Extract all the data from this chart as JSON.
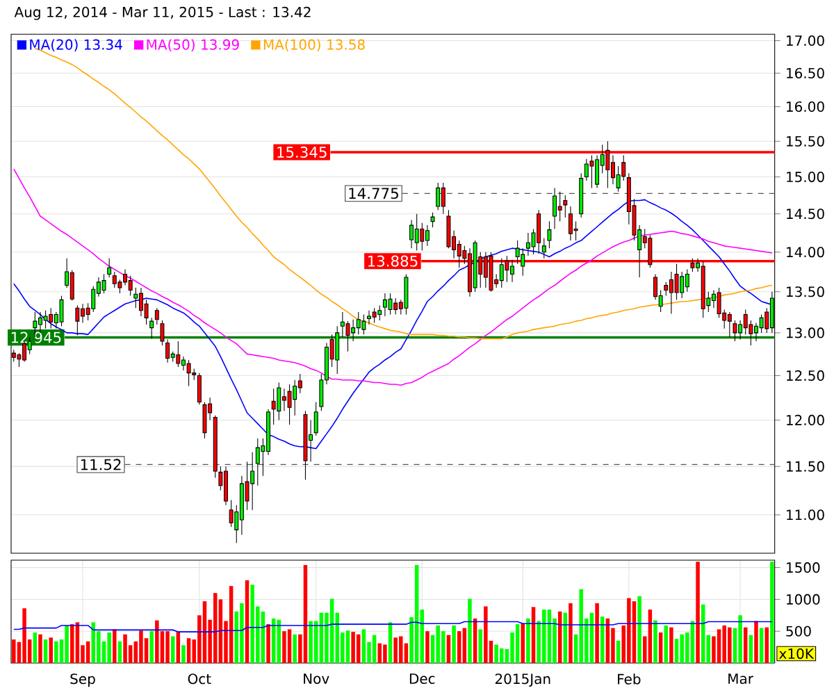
{
  "chart_data": [
    {
      "type": "candlestick",
      "title": "Aug 12, 2014 - Mar 11, 2015 - Last : 13.42",
      "categories": [
        null,
        null,
        null,
        null,
        null,
        null,
        null,
        null,
        null,
        null,
        null,
        null,
        null,
        null,
        null,
        null,
        null,
        null,
        null,
        null,
        null,
        null,
        null,
        null,
        null,
        null,
        null,
        null,
        null,
        null,
        null,
        null,
        null,
        null,
        null,
        null,
        null,
        null,
        null,
        null,
        null,
        null,
        null,
        null,
        null,
        null,
        null,
        null,
        null,
        null,
        null,
        null,
        null,
        null,
        null,
        null,
        null,
        null,
        null,
        null,
        null,
        null,
        null,
        null,
        null,
        null,
        null,
        null,
        null,
        null,
        null,
        null,
        null,
        null,
        null,
        null,
        null,
        null,
        null,
        null,
        null,
        null,
        null,
        null,
        null,
        null,
        null,
        null,
        null,
        null,
        null,
        null,
        null,
        null,
        null,
        null,
        null,
        null,
        null,
        null,
        null,
        null,
        null,
        null,
        null,
        null,
        null,
        null,
        null,
        null,
        null,
        null,
        null,
        null,
        null,
        null,
        null,
        null,
        null,
        null,
        null,
        null,
        null,
        null,
        null,
        null,
        null,
        null,
        null,
        null,
        null,
        null,
        null,
        null,
        null,
        null,
        null,
        null,
        null,
        null,
        null,
        null,
        null,
        null
      ],
      "ohlc": [
        [
          12.76,
          12.8,
          12.66,
          12.71
        ],
        [
          12.74,
          12.76,
          12.6,
          12.69
        ],
        [
          12.87,
          12.9,
          12.66,
          12.68
        ],
        [
          12.8,
          12.95,
          12.75,
          12.9
        ],
        [
          13.06,
          13.25,
          12.95,
          13.14
        ],
        [
          13.1,
          13.25,
          13.0,
          13.18
        ],
        [
          13.15,
          13.27,
          13.05,
          13.2
        ],
        [
          13.22,
          13.3,
          13.05,
          13.13
        ],
        [
          13.12,
          13.25,
          13.05,
          13.22
        ],
        [
          13.13,
          13.45,
          13.08,
          13.4
        ],
        [
          13.58,
          13.92,
          13.55,
          13.75
        ],
        [
          13.74,
          13.77,
          13.39,
          13.41
        ],
        [
          13.3,
          13.33,
          12.97,
          13.14
        ],
        [
          13.29,
          13.35,
          13.12,
          13.2
        ],
        [
          13.3,
          13.36,
          13.15,
          13.22
        ],
        [
          13.29,
          13.57,
          13.25,
          13.53
        ],
        [
          13.48,
          13.68,
          13.44,
          13.62
        ],
        [
          13.52,
          13.72,
          13.48,
          13.64
        ],
        [
          13.72,
          13.92,
          13.68,
          13.8
        ],
        [
          13.7,
          13.75,
          13.55,
          13.6
        ],
        [
          13.62,
          13.65,
          13.48,
          13.55
        ],
        [
          13.72,
          13.78,
          13.58,
          13.62
        ],
        [
          13.64,
          13.7,
          13.45,
          13.52
        ],
        [
          13.42,
          13.55,
          13.3,
          13.47
        ],
        [
          13.48,
          13.55,
          13.2,
          13.27
        ],
        [
          13.35,
          13.4,
          13.1,
          13.18
        ],
        [
          13.06,
          13.18,
          12.93,
          13.14
        ],
        [
          13.27,
          13.3,
          13.1,
          13.16
        ],
        [
          13.11,
          13.15,
          12.85,
          12.9
        ],
        [
          12.88,
          12.92,
          12.65,
          12.7
        ],
        [
          12.71,
          12.78,
          12.66,
          12.75
        ],
        [
          12.74,
          12.9,
          12.6,
          12.64
        ],
        [
          12.62,
          12.72,
          12.56,
          12.68
        ],
        [
          12.64,
          12.68,
          12.38,
          12.53
        ],
        [
          12.53,
          12.58,
          12.45,
          12.51
        ],
        [
          12.5,
          12.53,
          12.17,
          12.2
        ],
        [
          12.17,
          12.2,
          11.8,
          11.86
        ],
        [
          12.18,
          12.25,
          12.0,
          12.08
        ],
        [
          12.03,
          12.05,
          11.38,
          11.45
        ],
        [
          11.44,
          11.5,
          11.25,
          11.3
        ],
        [
          11.45,
          11.5,
          11.1,
          11.14
        ],
        [
          11.05,
          11.15,
          10.88,
          10.92
        ],
        [
          10.85,
          11.1,
          10.72,
          11.03
        ],
        [
          10.95,
          11.4,
          10.8,
          11.32
        ],
        [
          11.34,
          11.55,
          11.05,
          11.14
        ],
        [
          11.32,
          11.65,
          11.05,
          11.45
        ],
        [
          11.53,
          11.8,
          11.3,
          11.7
        ],
        [
          11.66,
          11.8,
          11.4,
          11.72
        ],
        [
          11.66,
          12.12,
          11.62,
          12.09
        ],
        [
          12.21,
          12.35,
          11.95,
          12.12
        ],
        [
          12.1,
          12.42,
          12.0,
          12.36
        ],
        [
          12.26,
          12.35,
          12.1,
          12.22
        ],
        [
          12.32,
          12.4,
          11.95,
          12.14
        ],
        [
          12.23,
          12.45,
          12.05,
          12.38
        ],
        [
          12.44,
          12.52,
          12.3,
          12.36
        ],
        [
          12.06,
          12.1,
          11.36,
          11.56
        ],
        [
          11.78,
          12.0,
          11.55,
          11.84
        ],
        [
          11.86,
          12.2,
          11.83,
          12.09
        ],
        [
          12.15,
          12.52,
          12.1,
          12.45
        ],
        [
          12.45,
          12.88,
          12.4,
          12.83
        ],
        [
          12.92,
          12.98,
          12.6,
          12.69
        ],
        [
          12.68,
          13.08,
          12.52,
          13.0
        ],
        [
          13.08,
          13.25,
          12.95,
          13.13
        ],
        [
          13.11,
          13.14,
          12.78,
          12.97
        ],
        [
          13.0,
          13.16,
          12.9,
          13.06
        ],
        [
          13.06,
          13.25,
          12.98,
          13.16
        ],
        [
          13.04,
          13.22,
          12.98,
          13.14
        ],
        [
          13.17,
          13.27,
          13.1,
          13.2
        ],
        [
          13.25,
          13.3,
          13.12,
          13.19
        ],
        [
          13.22,
          13.33,
          13.15,
          13.27
        ],
        [
          13.31,
          13.48,
          13.2,
          13.4
        ],
        [
          13.28,
          13.48,
          13.22,
          13.41
        ],
        [
          13.36,
          13.42,
          13.22,
          13.28
        ],
        [
          13.37,
          13.4,
          13.22,
          13.29
        ],
        [
          13.3,
          13.72,
          13.22,
          13.68
        ],
        [
          14.16,
          14.42,
          14.05,
          14.35
        ],
        [
          14.12,
          14.5,
          14.02,
          14.3
        ],
        [
          14.3,
          14.38,
          14.02,
          14.14
        ],
        [
          14.15,
          14.35,
          14.08,
          14.28
        ],
        [
          14.4,
          14.52,
          14.32,
          14.46
        ],
        [
          14.6,
          14.92,
          14.55,
          14.85
        ],
        [
          14.85,
          14.92,
          14.5,
          14.6
        ],
        [
          14.47,
          14.55,
          14.05,
          14.07
        ],
        [
          14.2,
          14.28,
          13.92,
          14.03
        ],
        [
          14.1,
          14.15,
          13.8,
          13.95
        ],
        [
          14.02,
          14.08,
          13.85,
          13.92
        ],
        [
          13.98,
          14.05,
          13.44,
          13.5
        ],
        [
          13.55,
          14.15,
          13.5,
          14.12
        ],
        [
          13.94,
          14.0,
          13.55,
          13.72
        ],
        [
          13.94,
          14.0,
          13.55,
          13.68
        ],
        [
          13.95,
          14.0,
          13.5,
          13.52
        ],
        [
          13.65,
          13.72,
          13.55,
          13.6
        ],
        [
          13.64,
          13.92,
          13.55,
          13.84
        ],
        [
          13.89,
          13.95,
          13.62,
          13.77
        ],
        [
          13.72,
          13.9,
          13.62,
          13.82
        ],
        [
          13.94,
          14.15,
          13.85,
          14.05
        ],
        [
          13.82,
          14.05,
          13.7,
          13.97
        ],
        [
          14.05,
          14.25,
          13.95,
          14.12
        ],
        [
          14.07,
          14.3,
          13.97,
          14.25
        ],
        [
          14.5,
          14.55,
          13.98,
          14.12
        ],
        [
          14.0,
          14.18,
          13.92,
          14.08
        ],
        [
          14.15,
          14.4,
          14.05,
          14.29
        ],
        [
          14.47,
          14.85,
          14.3,
          14.74
        ],
        [
          14.6,
          14.8,
          14.4,
          14.55
        ],
        [
          14.68,
          14.75,
          14.45,
          14.62
        ],
        [
          14.5,
          14.6,
          14.15,
          14.24
        ],
        [
          14.3,
          14.4,
          14.15,
          14.28
        ],
        [
          14.5,
          15.05,
          14.45,
          14.98
        ],
        [
          15.0,
          15.25,
          14.95,
          15.18
        ],
        [
          15.22,
          15.3,
          14.85,
          15.15
        ],
        [
          14.9,
          15.3,
          14.85,
          15.24
        ],
        [
          15.16,
          15.45,
          15.05,
          15.31
        ],
        [
          15.37,
          15.5,
          14.85,
          15.1
        ],
        [
          15.2,
          15.3,
          14.9,
          14.99
        ],
        [
          14.85,
          15.15,
          14.8,
          15.03
        ],
        [
          15.2,
          15.3,
          14.95,
          15.01
        ],
        [
          14.99,
          15.05,
          14.36,
          14.53
        ],
        [
          14.61,
          14.7,
          14.15,
          14.22
        ],
        [
          14.03,
          14.35,
          13.68,
          14.29
        ],
        [
          14.2,
          14.3,
          14.05,
          14.12
        ],
        [
          14.18,
          14.22,
          13.8,
          13.84
        ],
        [
          13.68,
          13.72,
          13.4,
          13.44
        ],
        [
          13.32,
          13.52,
          13.25,
          13.45
        ],
        [
          13.58,
          13.62,
          13.45,
          13.52
        ],
        [
          13.65,
          13.75,
          13.23,
          13.49
        ],
        [
          13.72,
          13.85,
          13.4,
          13.49
        ],
        [
          13.49,
          13.75,
          13.42,
          13.69
        ],
        [
          13.56,
          13.78,
          13.5,
          13.72
        ],
        [
          13.86,
          13.92,
          13.75,
          13.8
        ],
        [
          13.8,
          13.92,
          13.75,
          13.86
        ],
        [
          13.82,
          13.88,
          13.18,
          13.29
        ],
        [
          13.33,
          13.5,
          13.25,
          13.42
        ],
        [
          13.39,
          13.52,
          13.3,
          13.47
        ],
        [
          13.49,
          13.55,
          13.18,
          13.23
        ],
        [
          13.24,
          13.28,
          13.05,
          13.15
        ],
        [
          13.22,
          13.25,
          12.95,
          13.14
        ],
        [
          13.11,
          13.15,
          12.9,
          13.0
        ],
        [
          13.0,
          13.15,
          12.92,
          13.1
        ],
        [
          13.22,
          13.28,
          12.98,
          13.06
        ],
        [
          13.1,
          13.15,
          12.85,
          12.99
        ],
        [
          13.0,
          13.12,
          12.9,
          13.08
        ],
        [
          13.06,
          13.22,
          13.0,
          13.18
        ],
        [
          13.25,
          13.3,
          13.0,
          13.05
        ],
        [
          13.06,
          13.5,
          13.0,
          13.42
        ]
      ],
      "series": [
        {
          "type": "line",
          "name": "MA(20) 13.34",
          "color": "#0000ff",
          "values": [
            13.6,
            13.51,
            13.41,
            13.32,
            13.27,
            13.22,
            13.16,
            13.11,
            13.07,
            13.04,
            13.0,
            13.0,
            12.99,
            12.99,
            12.98,
            13.05,
            13.12,
            13.19,
            13.23,
            13.27,
            13.31,
            13.35,
            13.37,
            13.39,
            13.4,
            13.42,
            13.41,
            13.4,
            13.37,
            13.34,
            13.3,
            13.27,
            13.24,
            13.19,
            13.13,
            13.08,
            13.0,
            12.92,
            12.84,
            12.72,
            12.59,
            12.46,
            12.34,
            12.21,
            12.08,
            12.02,
            11.96,
            11.9,
            11.84,
            11.82,
            11.79,
            11.77,
            11.74,
            11.72,
            11.71,
            11.71,
            11.7,
            11.69,
            11.77,
            11.85,
            11.93,
            12.02,
            12.12,
            12.21,
            12.3,
            12.38,
            12.46,
            12.54,
            12.59,
            12.63,
            12.68,
            12.72,
            12.77,
            12.81,
            12.92,
            13.03,
            13.15,
            13.26,
            13.38,
            13.44,
            13.51,
            13.57,
            13.64,
            13.7,
            13.77,
            13.8,
            13.84,
            13.87,
            13.91,
            13.94,
            13.96,
            13.98,
            14.01,
            14.03,
            14.05,
            14.04,
            14.03,
            14.02,
            14.01,
            14.0,
            13.97,
            13.94,
            13.98,
            14.01,
            14.05,
            14.08,
            14.12,
            14.15,
            14.21,
            14.27,
            14.33,
            14.39,
            14.45,
            14.51,
            14.56,
            14.62,
            14.67,
            14.68,
            14.68,
            14.69,
            14.65,
            14.62,
            14.58,
            14.55,
            14.51,
            14.46,
            14.4,
            14.35,
            14.29,
            14.22,
            14.15,
            14.08,
            14.01,
            13.94,
            13.85,
            13.76,
            13.66,
            13.57,
            13.52,
            13.48,
            13.43,
            13.38,
            13.36,
            13.34
          ]
        },
        {
          "type": "line",
          "name": "MA(50) 13.99",
          "color": "#ff00ff",
          "values": [
            15.11,
            14.98,
            14.85,
            14.73,
            14.6,
            14.47,
            14.42,
            14.37,
            14.32,
            14.27,
            14.23,
            14.18,
            14.13,
            14.08,
            14.03,
            13.98,
            13.92,
            13.87,
            13.82,
            13.78,
            13.74,
            13.7,
            13.67,
            13.63,
            13.59,
            13.55,
            13.51,
            13.48,
            13.44,
            13.41,
            13.37,
            13.34,
            13.3,
            13.26,
            13.21,
            13.17,
            13.12,
            13.08,
            13.04,
            13.0,
            12.95,
            12.91,
            12.87,
            12.81,
            12.75,
            12.74,
            12.73,
            12.72,
            12.71,
            12.7,
            12.68,
            12.67,
            12.66,
            12.65,
            12.63,
            12.61,
            12.58,
            12.56,
            12.53,
            12.49,
            12.46,
            12.46,
            12.45,
            12.45,
            12.45,
            12.44,
            12.44,
            12.43,
            12.42,
            12.42,
            12.41,
            12.4,
            12.4,
            12.39,
            12.41,
            12.42,
            12.45,
            12.48,
            12.52,
            12.55,
            12.58,
            12.61,
            12.64,
            12.69,
            12.73,
            12.78,
            12.83,
            12.87,
            12.92,
            12.97,
            13.01,
            13.06,
            13.11,
            13.16,
            13.2,
            13.25,
            13.3,
            13.35,
            13.4,
            13.44,
            13.49,
            13.54,
            13.58,
            13.63,
            13.68,
            13.73,
            13.77,
            13.82,
            13.86,
            13.9,
            13.95,
            13.99,
            14.03,
            14.07,
            14.1,
            14.13,
            14.15,
            14.18,
            14.21,
            14.22,
            14.23,
            14.24,
            14.25,
            14.26,
            14.27,
            14.26,
            14.24,
            14.23,
            14.21,
            14.19,
            14.17,
            14.14,
            14.12,
            14.1,
            14.08,
            14.07,
            14.06,
            14.05,
            14.04,
            14.03,
            14.02,
            14.01,
            14.0,
            13.99
          ]
        },
        {
          "type": "line",
          "name": "MA(100) 13.58",
          "color": "#ffa500",
          "values": [
            null,
            null,
            null,
            null,
            16.88,
            16.85,
            16.81,
            16.77,
            16.74,
            16.7,
            16.67,
            16.63,
            16.58,
            16.52,
            16.47,
            16.41,
            16.36,
            16.3,
            16.25,
            16.19,
            16.12,
            16.05,
            15.99,
            15.92,
            15.85,
            15.79,
            15.72,
            15.65,
            15.58,
            15.52,
            15.45,
            15.38,
            15.31,
            15.25,
            15.18,
            15.11,
            15.02,
            14.93,
            14.84,
            14.74,
            14.65,
            14.56,
            14.47,
            14.39,
            14.32,
            14.24,
            14.17,
            14.09,
            14.02,
            13.94,
            13.89,
            13.84,
            13.78,
            13.73,
            13.68,
            13.63,
            13.58,
            13.52,
            13.47,
            13.43,
            13.38,
            13.34,
            13.29,
            13.25,
            13.2,
            13.16,
            13.14,
            13.12,
            13.09,
            13.07,
            13.05,
            13.03,
            13.02,
            13.01,
            12.99,
            12.98,
            12.98,
            12.98,
            12.98,
            12.98,
            12.97,
            12.97,
            12.96,
            12.96,
            12.95,
            12.95,
            12.94,
            12.94,
            12.93,
            12.93,
            12.93,
            12.93,
            12.93,
            12.95,
            12.98,
            13.0,
            13.01,
            13.02,
            13.04,
            13.05,
            13.06,
            13.07,
            13.08,
            13.1,
            13.11,
            13.12,
            13.14,
            13.15,
            13.17,
            13.18,
            13.2,
            13.21,
            13.22,
            13.24,
            13.25,
            13.27,
            13.28,
            13.29,
            13.31,
            13.32,
            13.33,
            13.34,
            13.34,
            13.35,
            13.36,
            13.37,
            13.38,
            13.38,
            13.39,
            13.4,
            13.41,
            13.42,
            13.43,
            13.44,
            13.46,
            13.47,
            13.48,
            13.5,
            13.51,
            13.52,
            13.54,
            13.55,
            13.57,
            13.58
          ]
        }
      ],
      "ylim": [
        10.62,
        17.1
      ],
      "yticks": [
        {
          "value": 11,
          "label": "11.00"
        },
        {
          "value": 11.5,
          "label": "11.50"
        },
        {
          "value": 12,
          "label": "12.00"
        },
        {
          "value": 12.5,
          "label": "12.50"
        },
        {
          "value": 13,
          "label": "13.00"
        },
        {
          "value": 13.5,
          "label": "13.50"
        },
        {
          "value": 14,
          "label": "14.00"
        },
        {
          "value": 14.5,
          "label": "14.50"
        },
        {
          "value": 15,
          "label": "15.00"
        },
        {
          "value": 15.5,
          "label": "15.50"
        },
        {
          "value": 16,
          "label": "16.00"
        },
        {
          "value": 16.5,
          "label": "16.50"
        },
        {
          "value": 17,
          "label": "17.00"
        }
      ],
      "log": true,
      "grid": "y",
      "legend": "top left",
      "tick_labels": "y",
      "ref_lines": [
        {
          "axis": "y",
          "value": 15.345,
          "label": "15.345",
          "color": "#ff0000"
        },
        {
          "axis": "y",
          "value": 14.775,
          "label": "14.775",
          "color": "#555555",
          "line_style": "dashed"
        },
        {
          "axis": "y",
          "value": 13.885,
          "label": "13.885",
          "color": "#ff0000"
        },
        {
          "axis": "y",
          "value": 12.945,
          "label": "12.945",
          "color": "#008000"
        },
        {
          "axis": "y",
          "value": 11.52,
          "label": "11.52",
          "color": "#555555",
          "line_style": "dashed"
        }
      ]
    },
    {
      "type": "bar",
      "categories": [
        null,
        null,
        null,
        null,
        null,
        null,
        null,
        null,
        null,
        null,
        null,
        null,
        null,
        "Sep",
        null,
        null,
        null,
        null,
        null,
        null,
        null,
        null,
        null,
        null,
        null,
        null,
        null,
        null,
        null,
        null,
        null,
        null,
        null,
        null,
        null,
        "Oct",
        null,
        null,
        null,
        null,
        null,
        null,
        null,
        null,
        null,
        null,
        null,
        null,
        null,
        null,
        null,
        null,
        null,
        null,
        null,
        null,
        null,
        "Nov",
        null,
        null,
        null,
        null,
        null,
        null,
        null,
        null,
        null,
        null,
        null,
        null,
        null,
        null,
        null,
        null,
        null,
        null,
        null,
        "Dec",
        null,
        null,
        null,
        null,
        null,
        null,
        null,
        null,
        null,
        null,
        null,
        null,
        null,
        null,
        null,
        null,
        null,
        null,
        "2015Jan",
        null,
        null,
        null,
        null,
        null,
        null,
        null,
        null,
        null,
        null,
        null,
        null,
        null,
        null,
        null,
        null,
        null,
        null,
        null,
        "Feb",
        null,
        null,
        null,
        null,
        null,
        null,
        null,
        null,
        null,
        null,
        null,
        null,
        null,
        null,
        null,
        null,
        null,
        null,
        null,
        null,
        "Mar",
        null,
        null,
        null,
        null,
        null,
        null
      ],
      "series": [
        {
          "type": "bar",
          "values": [
            370,
            330,
            860,
            370,
            480,
            450,
            370,
            400,
            340,
            370,
            590,
            610,
            640,
            280,
            340,
            640,
            500,
            340,
            480,
            530,
            340,
            450,
            280,
            340,
            510,
            390,
            500,
            670,
            500,
            500,
            420,
            490,
            280,
            390,
            370,
            750,
            970,
            680,
            1100,
            1000,
            660,
            1210,
            810,
            940,
            1300,
            1230,
            890,
            810,
            610,
            700,
            680,
            500,
            530,
            450,
            450,
            1540,
            660,
            660,
            790,
            790,
            1010,
            790,
            480,
            510,
            490,
            450,
            530,
            330,
            440,
            310,
            290,
            640,
            400,
            420,
            310,
            720,
            1540,
            840,
            500,
            440,
            590,
            500,
            440,
            590,
            500,
            550,
            1010,
            700,
            530,
            890,
            350,
            290,
            230,
            220,
            480,
            610,
            620,
            700,
            880,
            660,
            840,
            840,
            700,
            810,
            790,
            940,
            450,
            1160,
            700,
            790,
            940,
            730,
            700,
            550,
            350,
            590,
            1020,
            970,
            1050,
            420,
            840,
            670,
            480,
            590,
            560,
            380,
            450,
            480,
            660,
            1590,
            920,
            440,
            420,
            530,
            590,
            560,
            550,
            750,
            560,
            440,
            660,
            550,
            560,
            1590
          ],
          "colors": [
            "#ff0000",
            "#ff0000",
            "#ff0000",
            "#ff0000",
            "#00ff00",
            "#ff0000",
            "#00ff00",
            "#ff0000",
            "#00ff00",
            "#00ff00",
            "#00ff00",
            "#ff0000",
            "#ff0000",
            "#ff0000",
            "#ff0000",
            "#00ff00",
            "#00ff00",
            "#00ff00",
            "#00ff00",
            "#ff0000",
            "#00ff00",
            "#ff0000",
            "#ff0000",
            "#ff0000",
            "#ff0000",
            "#ff0000",
            "#00ff00",
            "#ff0000",
            "#ff0000",
            "#ff0000",
            "#00ff00",
            "#ff0000",
            "#00ff00",
            "#ff0000",
            "#ff0000",
            "#ff0000",
            "#ff0000",
            "#ff0000",
            "#ff0000",
            "#ff0000",
            "#ff0000",
            "#ff0000",
            "#00ff00",
            "#00ff00",
            "#ff0000",
            "#00ff00",
            "#00ff00",
            "#00ff00",
            "#ff0000",
            "#00ff00",
            "#00ff00",
            "#ff0000",
            "#ff0000",
            "#00ff00",
            "#ff0000",
            "#ff0000",
            "#00ff00",
            "#00ff00",
            "#00ff00",
            "#00ff00",
            "#00ff00",
            "#00ff00",
            "#00ff00",
            "#00ff00",
            "#ff0000",
            "#ff0000",
            "#00ff00",
            "#00ff00",
            "#00ff00",
            "#ff0000",
            "#ff0000",
            "#00ff00",
            "#ff0000",
            "#ff0000",
            "#ff0000",
            "#00ff00",
            "#00ff00",
            "#00ff00",
            "#ff0000",
            "#00ff00",
            "#00ff00",
            "#00ff00",
            "#ff0000",
            "#00ff00",
            "#ff0000",
            "#ff0000",
            "#00ff00",
            "#ff0000",
            "#00ff00",
            "#ff0000",
            "#ff0000",
            "#00ff00",
            "#00ff00",
            "#00ff00",
            "#00ff00",
            "#00ff00",
            "#ff0000",
            "#00ff00",
            "#ff0000",
            "#00ff00",
            "#00ff00",
            "#00ff00",
            "#00ff00",
            "#ff0000",
            "#00ff00",
            "#ff0000",
            "#00ff00",
            "#00ff00",
            "#00ff00",
            "#00ff00",
            "#ff0000",
            "#00ff00",
            "#ff0000",
            "#ff0000",
            "#00ff00",
            "#ff0000",
            "#ff0000",
            "#ff0000",
            "#00ff00",
            "#ff0000",
            "#ff0000",
            "#00ff00",
            "#ff0000",
            "#00ff00",
            "#ff0000",
            "#00ff00",
            "#00ff00",
            "#00ff00",
            "#00ff00",
            "#ff0000",
            "#00ff00",
            "#00ff00",
            "#ff0000",
            "#ff0000",
            "#ff0000",
            "#ff0000",
            "#00ff00",
            "#00ff00",
            "#ff0000",
            "#00ff00",
            "#ff0000",
            "#00ff00",
            "#ff0000",
            "#00ff00"
          ]
        },
        {
          "type": "line",
          "color": "#0000ff",
          "values": [
            530,
            530,
            550,
            550,
            550,
            550,
            550,
            550,
            550,
            590,
            590,
            590,
            590,
            590,
            590,
            520,
            520,
            520,
            520,
            520,
            520,
            520,
            520,
            520,
            520,
            520,
            520,
            520,
            520,
            520,
            520,
            490,
            490,
            490,
            490,
            490,
            490,
            490,
            490,
            510,
            510,
            510,
            510,
            510,
            560,
            560,
            560,
            560,
            590,
            590,
            590,
            590,
            590,
            590,
            590,
            590,
            590,
            590,
            590,
            590,
            610,
            610,
            610,
            610,
            610,
            610,
            610,
            610,
            610,
            610,
            610,
            610,
            610,
            610,
            610,
            640,
            640,
            620,
            620,
            620,
            620,
            620,
            620,
            620,
            620,
            650,
            650,
            650,
            650,
            650,
            650,
            650,
            650,
            650,
            650,
            650,
            620,
            620,
            620,
            620,
            620,
            620,
            620,
            600,
            600,
            600,
            600,
            600,
            600,
            600,
            600,
            600,
            600,
            600,
            620,
            620,
            620,
            620,
            620,
            620,
            620,
            620,
            620,
            620,
            620,
            620,
            620,
            620,
            620,
            620,
            620,
            650,
            650,
            650,
            650,
            650,
            650,
            650,
            650,
            650,
            650,
            650,
            650,
            650
          ]
        }
      ],
      "ylim": [
        0,
        1616
      ],
      "yticks": [
        500,
        1000,
        1500
      ],
      "grid": true,
      "annotations": [
        "x10K"
      ]
    }
  ]
}
